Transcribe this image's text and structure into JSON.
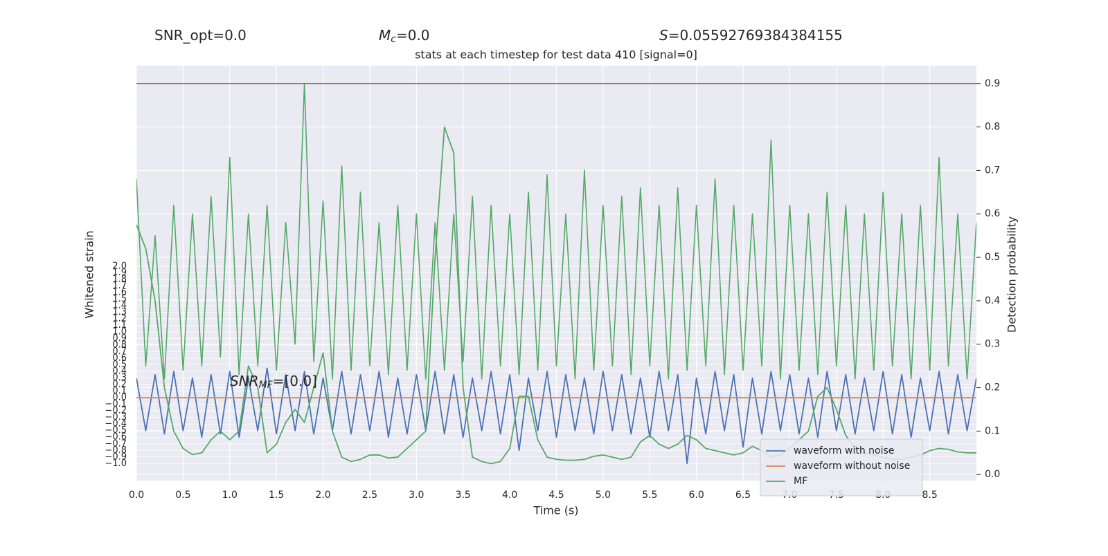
{
  "chart_data": {
    "type": "line",
    "header": [
      {
        "text": "SNR_opt=0.0"
      },
      {
        "symbol": "M",
        "sub": "c",
        "text": "=0.0"
      },
      {
        "symbol": "S",
        "text": "=0.05592769384384155"
      }
    ],
    "title": "stats at each timestep for test data 410 [signal=0]",
    "annotation": {
      "symbol": "SNR",
      "sub": "MF",
      "text": "=[0.0]"
    },
    "xlabel": "Time (s)",
    "ylabel": "Whitened strain",
    "y2label": "Detection probability",
    "xlim": [
      0,
      9.0
    ],
    "ylim": [
      -1.26,
      5.05
    ],
    "y2lim": [
      -0.014,
      0.941
    ],
    "xticks": [
      {
        "value": 0,
        "label": "0.0"
      },
      0.5,
      {
        "value": 1,
        "label": "1.0"
      },
      1.5,
      {
        "value": 2,
        "label": "2.0"
      },
      2.5,
      {
        "value": 3,
        "label": "3.0"
      },
      3.5,
      {
        "value": 4,
        "label": "4.0"
      },
      4.5,
      {
        "value": 5,
        "label": "5.0"
      },
      5.5,
      {
        "value": 6,
        "label": "6.0"
      },
      6.5,
      {
        "value": 7,
        "label": "7.0"
      },
      7.5,
      {
        "value": 8,
        "label": "8.0"
      },
      8.5
    ],
    "yticks": [
      {
        "value": -1.0,
        "label": "−1.0"
      },
      {
        "value": -0.9,
        "label": "−0.9"
      },
      {
        "value": -0.8,
        "label": "−0.8"
      },
      {
        "value": -0.7,
        "label": "−0.7"
      },
      {
        "value": -0.6,
        "label": "−0.6"
      },
      {
        "value": -0.5,
        "label": "−0.5"
      },
      {
        "value": -0.4,
        "label": "−0.4"
      },
      {
        "value": -0.3,
        "label": "−0.3"
      },
      {
        "value": -0.2,
        "label": "−0.2"
      },
      {
        "value": -0.1,
        "label": "−0.1"
      },
      {
        "value": 0,
        "label": "0.0"
      },
      0.1,
      0.2,
      0.3,
      0.4,
      0.5,
      0.6,
      0.7,
      0.8,
      0.9,
      {
        "value": 1,
        "label": "1.0"
      },
      1.1,
      1.2,
      1.3,
      1.4,
      1.5,
      1.6,
      1.7,
      1.8,
      1.9,
      {
        "value": 2,
        "label": "2.0"
      }
    ],
    "y2ticks": [
      {
        "value": 0,
        "label": "0.0"
      },
      0.1,
      0.2,
      0.3,
      0.4,
      0.5,
      0.6,
      0.7,
      0.8,
      0.9
    ],
    "grid": true,
    "legend": "lower right",
    "hlines": [
      {
        "value": 0.9,
        "axis": "y2",
        "color": "#c44e52"
      }
    ],
    "x": [
      0,
      0.1,
      0.2,
      0.3,
      0.4,
      0.5,
      0.6,
      0.7,
      0.8,
      0.9,
      1.0,
      1.1,
      1.2,
      1.3,
      1.4,
      1.5,
      1.6,
      1.7,
      1.8,
      1.9,
      2.0,
      2.1,
      2.2,
      2.3,
      2.4,
      2.5,
      2.6,
      2.7,
      2.8,
      2.9,
      3.0,
      3.1,
      3.2,
      3.3,
      3.4,
      3.5,
      3.6,
      3.7,
      3.8,
      3.9,
      4.0,
      4.1,
      4.2,
      4.3,
      4.4,
      4.5,
      4.6,
      4.7,
      4.8,
      4.9,
      5.0,
      5.1,
      5.2,
      5.3,
      5.4,
      5.5,
      5.6,
      5.7,
      5.8,
      5.9,
      6.0,
      6.1,
      6.2,
      6.3,
      6.4,
      6.5,
      6.6,
      6.7,
      6.8,
      6.9,
      7.0,
      7.1,
      7.2,
      7.3,
      7.4,
      7.5,
      7.6,
      7.7,
      7.8,
      7.9,
      8.0,
      8.1,
      8.2,
      8.3,
      8.4,
      8.5,
      8.6,
      8.7,
      8.8,
      8.9,
      9.0
    ],
    "series": [
      {
        "name": "waveform with noise",
        "color": "#4c72b0",
        "values": [
          0.3,
          -0.5,
          0.35,
          -0.55,
          0.4,
          -0.5,
          0.3,
          -0.6,
          0.35,
          -0.55,
          0.4,
          -0.6,
          0.3,
          -0.5,
          0.45,
          -0.55,
          0.35,
          -0.5,
          0.4,
          -0.55,
          0.3,
          -0.5,
          0.4,
          -0.55,
          0.35,
          -0.5,
          0.4,
          -0.6,
          0.3,
          -0.55,
          0.35,
          -0.5,
          0.4,
          -0.55,
          0.35,
          -0.6,
          0.3,
          -0.5,
          0.4,
          -0.55,
          0.35,
          -0.8,
          0.3,
          -0.5,
          0.4,
          -0.6,
          0.35,
          -0.5,
          0.3,
          -0.55,
          0.4,
          -0.5,
          0.35,
          -0.55,
          0.3,
          -0.6,
          0.4,
          -0.5,
          0.35,
          -1.0,
          0.3,
          -0.55,
          0.4,
          -0.5,
          0.35,
          -0.75,
          0.3,
          -0.55,
          0.4,
          -0.5,
          0.35,
          -0.55,
          0.3,
          -0.6,
          0.4,
          -0.5,
          0.35,
          -0.55,
          0.3,
          -0.5,
          0.4,
          -0.55,
          0.35,
          -0.6,
          0.3,
          -0.5,
          0.4,
          -0.55,
          0.35,
          -0.5,
          0.3
        ]
      },
      {
        "name": "waveform without noise",
        "color": "#dd8452",
        "x": [
          0,
          9.0
        ],
        "values": [
          0,
          0
        ]
      },
      {
        "color": "#55a868",
        "axis": "y2",
        "values": [
          0.68,
          0.25,
          0.55,
          0.22,
          0.62,
          0.24,
          0.6,
          0.25,
          0.64,
          0.27,
          0.73,
          0.23,
          0.6,
          0.25,
          0.62,
          0.24,
          0.58,
          0.3,
          0.9,
          0.26,
          0.63,
          0.22,
          0.71,
          0.24,
          0.65,
          0.25,
          0.58,
          0.23,
          0.62,
          0.24,
          0.6,
          0.22,
          0.58,
          0.24,
          0.6,
          0.26,
          0.64,
          0.22,
          0.62,
          0.25,
          0.6,
          0.23,
          0.65,
          0.24,
          0.69,
          0.25,
          0.6,
          0.22,
          0.7,
          0.24,
          0.62,
          0.25,
          0.64,
          0.23,
          0.66,
          0.25,
          0.62,
          0.22,
          0.66,
          0.24,
          0.62,
          0.25,
          0.68,
          0.23,
          0.62,
          0.24,
          0.6,
          0.25,
          0.77,
          0.22,
          0.62,
          0.24,
          0.6,
          0.23,
          0.65,
          0.25,
          0.62,
          0.22,
          0.6,
          0.24,
          0.65,
          0.25,
          0.6,
          0.22,
          0.62,
          0.24,
          0.73,
          0.25,
          0.6,
          0.22,
          0.58
        ]
      },
      {
        "name": "MF",
        "color": "#55a868",
        "axis": "y2",
        "values": [
          0.575,
          0.52,
          0.4,
          0.2,
          0.1,
          0.06,
          0.046,
          0.05,
          0.08,
          0.1,
          0.08,
          0.1,
          0.25,
          0.2,
          0.05,
          0.07,
          0.12,
          0.15,
          0.12,
          0.2,
          0.28,
          0.1,
          0.04,
          0.03,
          0.035,
          0.045,
          0.045,
          0.038,
          0.04,
          0.06,
          0.08,
          0.1,
          0.5,
          0.8,
          0.74,
          0.2,
          0.04,
          0.03,
          0.025,
          0.03,
          0.06,
          0.18,
          0.18,
          0.08,
          0.04,
          0.035,
          0.033,
          0.033,
          0.035,
          0.042,
          0.045,
          0.04,
          0.035,
          0.04,
          0.075,
          0.09,
          0.07,
          0.06,
          0.07,
          0.09,
          0.08,
          0.06,
          0.055,
          0.05,
          0.045,
          0.05,
          0.065,
          0.055,
          0.04,
          0.045,
          0.06,
          0.08,
          0.1,
          0.18,
          0.2,
          0.15,
          0.09,
          0.06,
          0.05,
          0.045,
          0.04,
          0.035,
          0.035,
          0.04,
          0.045,
          0.055,
          0.06,
          0.058,
          0.052,
          0.05,
          0.05
        ]
      }
    ]
  }
}
